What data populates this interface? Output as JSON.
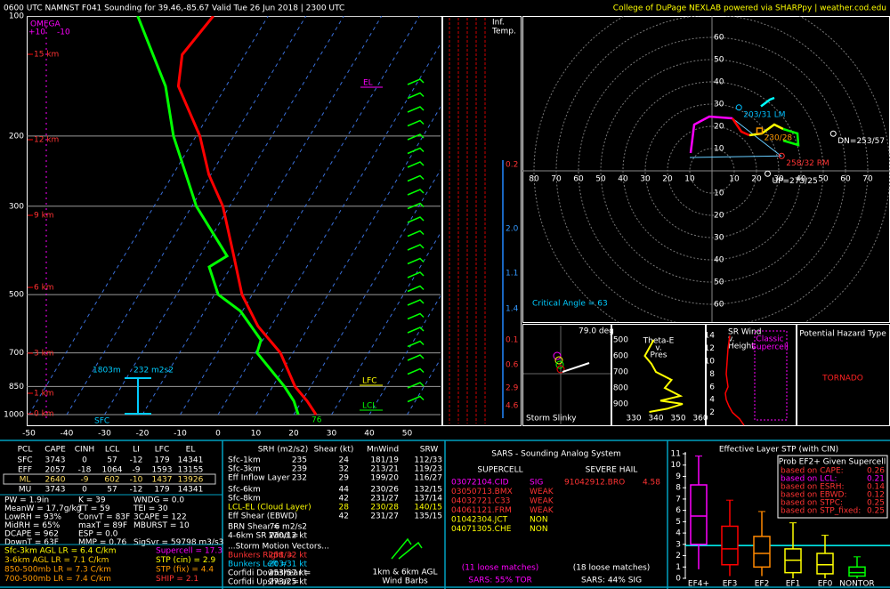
{
  "header": {
    "title": "0600 UTC NAMNST F041 Sounding for 39.46,-85.67 Valid  Tue 26 Jun 2018 | 2300 UTC",
    "credit": "College of DuPage NEXLAB powered via SHARPpy | weather.cod.edu"
  },
  "skewt": {
    "pressure_ticks": [
      100,
      200,
      300,
      500,
      700,
      850,
      1000
    ],
    "temperature_ticks": [
      -50,
      -40,
      -30,
      -20,
      -10,
      0,
      10,
      20,
      30,
      40,
      50
    ],
    "height_labels": [
      "15 km",
      "12 km",
      "9 km",
      "6 km",
      "3 km",
      "1 km",
      "0 km"
    ],
    "omega": "OMEGA",
    "omega_ticks": [
      "+10",
      "-10"
    ],
    "labels": {
      "el": "EL",
      "lfc": "LFC",
      "lcl": "LCL",
      "sfc": "SFC",
      "srh_depth": "1803m",
      "srh": "232 m2s2",
      "sfc_temp": "76"
    },
    "temperature": {
      "color": "#ff0000",
      "pressure": [
        1000,
        925,
        850,
        700,
        600,
        500,
        400,
        300,
        250,
        200,
        150,
        125,
        100
      ],
      "values": [
        25.9,
        21.4,
        15.9,
        6.7,
        -3.5,
        -12.7,
        -21,
        -31.8,
        -40.5,
        -49,
        -62.6,
        -66.6,
        -64.5
      ]
    },
    "dewpoint": {
      "color": "#00ff00",
      "pressure": [
        1000,
        925,
        850,
        700,
        650,
        550,
        500,
        426,
        400,
        300,
        200,
        150,
        100
      ],
      "values": [
        21.2,
        17.9,
        13.1,
        0.5,
        -0.5,
        -10.5,
        -19,
        -25.8,
        -22.8,
        -38.8,
        -56,
        -66,
        -84.5
      ]
    }
  },
  "inference": {
    "title": [
      "Inf.",
      "Temp."
    ],
    "values": [
      "0.2",
      "2.0",
      "1.1",
      "1.4",
      "0.1",
      "0.6",
      "2.9",
      "4.6"
    ]
  },
  "hodograph": {
    "rings": [
      10,
      20,
      30,
      40,
      50,
      60,
      70,
      80
    ],
    "trace": [
      {
        "color": "#ff00ff",
        "u": [
          -9.6,
          -8,
          -1.2,
          9.2
        ],
        "v": [
          8,
          20.8,
          24.4,
          23.6
        ]
      },
      {
        "color": "#ff0000",
        "u": [
          9.2,
          13.2,
          16.8
        ],
        "v": [
          23.6,
          17.6,
          16
        ]
      },
      {
        "color": "#ffff00",
        "u": [
          16.8,
          22.4,
          28,
          32
        ],
        "v": [
          16,
          16.8,
          20.8,
          18.8
        ]
      },
      {
        "color": "#00ff00",
        "u": [
          32,
          38.4,
          38.8,
          32
        ],
        "v": [
          18.8,
          16.8,
          11.6,
          13.6
        ]
      },
      {
        "color": "#00ffff",
        "u": [
          22,
          26,
          28
        ],
        "v": [
          29,
          32,
          32.8
        ]
      }
    ],
    "markers": [
      {
        "label": "203/31 LM",
        "color": "#00bfff",
        "u": 12.1,
        "v": 28.5
      },
      {
        "label": "230/28",
        "color": "#ff9900",
        "u": 21.4,
        "v": 18
      },
      {
        "label": "258/32 RM",
        "color": "#ff3333",
        "u": 31.3,
        "v": 6.7
      },
      {
        "label": "DN=253/57",
        "color": "#ffffff",
        "u": 54.5,
        "v": 16.7
      },
      {
        "label": "UP=273/25",
        "color": "#ffffff",
        "u": 25,
        "v": -1.3
      }
    ],
    "critical_angle": "Critical Angle = 63"
  },
  "slinky": {
    "angle": "79.0 deg",
    "title": "Storm Slinky"
  },
  "theta_e": {
    "title": [
      "Theta-E",
      "v.",
      "Pres"
    ],
    "yticks": [
      500,
      600,
      700,
      800,
      900
    ],
    "xticks": [
      330,
      340,
      350,
      360
    ],
    "color": "#ffff00",
    "pressure": [
      500,
      550,
      600,
      650,
      700,
      750,
      800,
      850,
      880,
      900,
      930,
      950
    ],
    "values": [
      339,
      337,
      335,
      338,
      340,
      347,
      344,
      351,
      342,
      352,
      345,
      337
    ]
  },
  "sr_wind": {
    "title": [
      "SR Wind",
      "v.",
      "Height"
    ],
    "type_label": [
      "Classic",
      "Supercell"
    ],
    "yticks": [
      14,
      12,
      10,
      8,
      6,
      4,
      2
    ],
    "color": "#ff0000",
    "heights": [
      0,
      1,
      2,
      3,
      4,
      5,
      6,
      8,
      10,
      12,
      14
    ],
    "values": [
      33,
      28,
      20,
      16,
      13,
      12,
      15,
      13,
      14,
      15,
      17
    ]
  },
  "hazard": {
    "title": "Potential Hazard Type",
    "value": "TORNADO"
  },
  "thermo": {
    "header": [
      "PCL",
      "CAPE",
      "CINH",
      "LCL",
      "LI",
      "LFC",
      "EL"
    ],
    "rows": [
      [
        "SFC",
        3743,
        0,
        57,
        -12,
        179,
        14341
      ],
      [
        "EFF",
        2057,
        -18,
        1064,
        -9,
        1593,
        13155
      ],
      [
        "ML",
        2640,
        -9,
        602,
        -10,
        1437,
        13926
      ],
      [
        "MU",
        3743,
        0,
        57,
        -12,
        179,
        14341
      ]
    ],
    "indices": [
      [
        "PW = 1.9in",
        "K = 39",
        "WNDG = 0.0"
      ],
      [
        "MeanW = 17.7g/kg",
        "TT = 59",
        "TEI = 30"
      ],
      [
        "LowRH = 93%",
        "ConvT = 83F",
        "3CAPE = 122"
      ],
      [
        "MidRH = 65%",
        "maxT = 89F",
        "MBURST = 10"
      ],
      [
        "DCAPE = 962",
        "ESP = 0.0"
      ],
      [
        "DownT = 63F",
        "MMP = 0.76",
        "SigSvr = 59798 m3/s3"
      ]
    ],
    "lapse_rates": [
      "Sfc-3km AGL LR = 6.4 C/km",
      "3-6km AGL LR = 7.1 C/km",
      "850-500mb LR = 7.3 C/km",
      "700-500mb LR = 7.4 C/km"
    ],
    "composites": [
      "Supercell = 17.3",
      "STP (cin) = 2.9",
      "STP (fix) = 4.4",
      "SHIP = 2.1"
    ]
  },
  "kinematic": {
    "header": [
      "SRH (m2/s2)",
      "Shear (kt)",
      "MnWind",
      "SRW"
    ],
    "rows": [
      [
        "Sfc-1km",
        235,
        24,
        "181/19",
        "112/33"
      ],
      [
        "Sfc-3km",
        239,
        32,
        "213/21",
        "119/23"
      ],
      [
        "Eff Inflow Layer",
        232,
        29,
        "199/20",
        "116/27"
      ],
      [
        "Sfc-6km",
        44,
        "230/26",
        "132/15"
      ],
      [
        "Sfc-8km",
        42,
        "231/27",
        "137/14"
      ],
      [
        "LCL-EL (Cloud Layer)",
        28,
        "230/28",
        "140/15"
      ],
      [
        "Eff Shear (EBWD)",
        42,
        "231/27",
        "135/15"
      ]
    ],
    "brn": [
      "BRN Shear = ",
      "76 m2/s2"
    ],
    "sr46": [
      "4-6km SR Wind = ",
      "230/12 kt"
    ],
    "motion_title": "...Storm Motion Vectors...",
    "motion": [
      [
        "Bunkers Right = ",
        "258/32 kt"
      ],
      [
        "Bunkers Left = ",
        "203/31 kt"
      ],
      [
        "Corfidi Downshear = ",
        "253/57 kt"
      ],
      [
        "Corfidi Upshear = ",
        "273/25 kt"
      ]
    ],
    "barbs_label": [
      "1km & 6km AGL",
      "Wind Barbs"
    ]
  },
  "sars": {
    "title": "SARS - Sounding Analog System",
    "supercell": {
      "title": "SUPERCELL",
      "matches": [
        [
          "03072104.CID",
          "SIG"
        ],
        [
          "03050713.BMX",
          "WEAK"
        ],
        [
          "04032721.C33",
          "WEAK"
        ],
        [
          "04061121.FRM",
          "WEAK"
        ],
        [
          "01042304.JCT",
          "NON"
        ],
        [
          "04071305.CHE",
          "NON"
        ]
      ],
      "loose": "(11 loose matches)",
      "summary": "SARS: 55% TOR"
    },
    "hail": {
      "title": "SEVERE HAIL",
      "matches": [
        [
          "91042912.BRO",
          "4.58"
        ]
      ],
      "loose": "(18 loose matches)",
      "summary": "SARS: 44% SIG"
    }
  },
  "stp": {
    "title": "Effective Layer STP (with CIN)",
    "ylim": [
      0,
      11
    ],
    "yticks": [
      0,
      1,
      2,
      3,
      4,
      5,
      6,
      7,
      8,
      9,
      10,
      11
    ],
    "categories": [
      "EF4+",
      "EF3",
      "EF2",
      "EF1",
      "EF0",
      "NONTOR"
    ],
    "colors": [
      "#ff00ff",
      "#ff0000",
      "#ff8800",
      "#ffff00",
      "#ffff00",
      "#00ff00"
    ],
    "boxes": [
      [
        0.8,
        3.0,
        5.5,
        8.25,
        10.8
      ],
      [
        0.2,
        1.2,
        2.6,
        4.6,
        6.9
      ],
      [
        0.2,
        1.0,
        2.2,
        3.7,
        5.9
      ],
      [
        0,
        0.5,
        1.6,
        2.6,
        4.9
      ],
      [
        0,
        0.4,
        1.2,
        2.2,
        3.8
      ],
      [
        0,
        0.2,
        0.5,
        1.0,
        1.9
      ]
    ],
    "stp_value": 2.9,
    "line_color": "#00ffff",
    "prob": {
      "title": "Prob EF2+ Given Supercell",
      "rows": [
        [
          "based on CAPE:",
          0.26
        ],
        [
          "based on LCL:",
          0.21
        ],
        [
          "based on ESRH:",
          0.14
        ],
        [
          "based on EBWD:",
          0.12
        ],
        [
          "based on STPC:",
          0.25
        ],
        [
          "based on STP_fixed:",
          0.25
        ]
      ]
    }
  }
}
